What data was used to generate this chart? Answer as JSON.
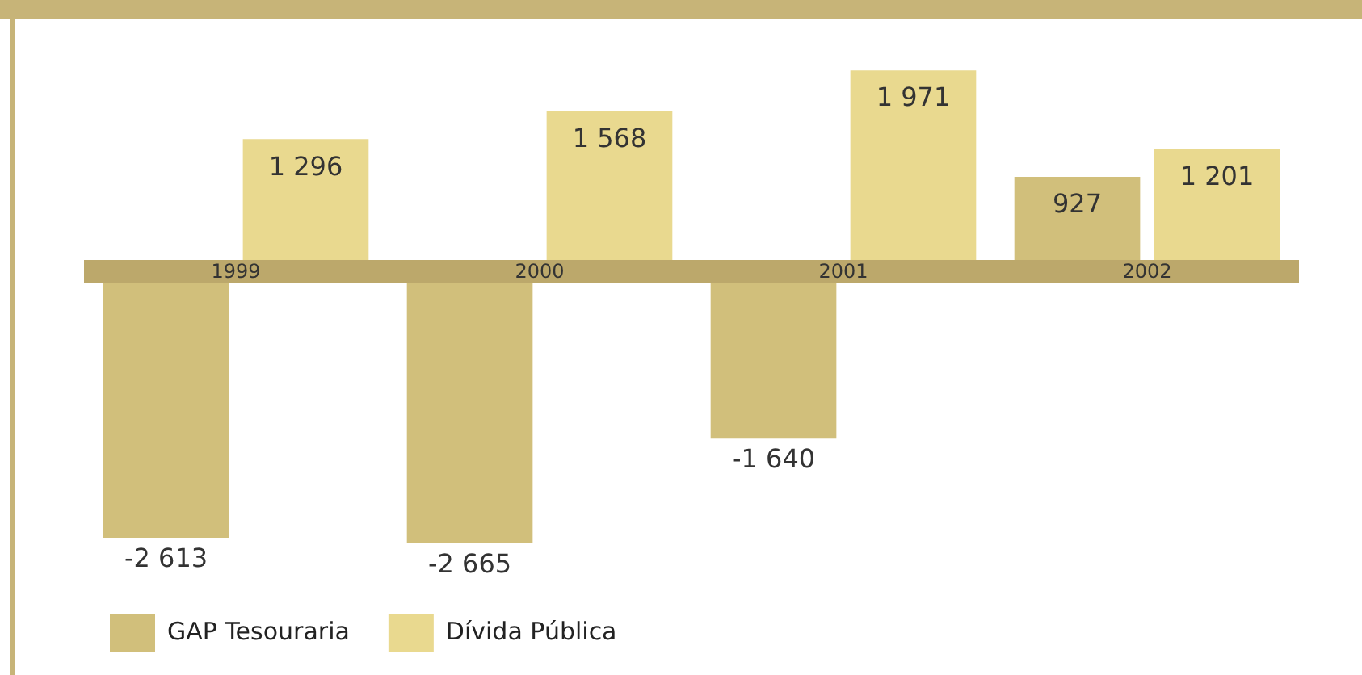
{
  "chart_data": {
    "type": "bar",
    "categories": [
      "1999",
      "2000",
      "2001",
      "2002"
    ],
    "series": [
      {
        "name": "GAP Tesouraria",
        "color": "#d1bf7b",
        "values": [
          -2613,
          -2665,
          -1640,
          927
        ],
        "value_labels": [
          "-2 613",
          "-2 665",
          "-1 640",
          "927"
        ]
      },
      {
        "name": "Dívida Pública",
        "color": "#e9d98f",
        "values": [
          1296,
          1568,
          1971,
          1201
        ],
        "value_labels": [
          "1 296",
          "1 568",
          "1 971",
          "1 201"
        ]
      }
    ],
    "legend": "bottom left"
  }
}
